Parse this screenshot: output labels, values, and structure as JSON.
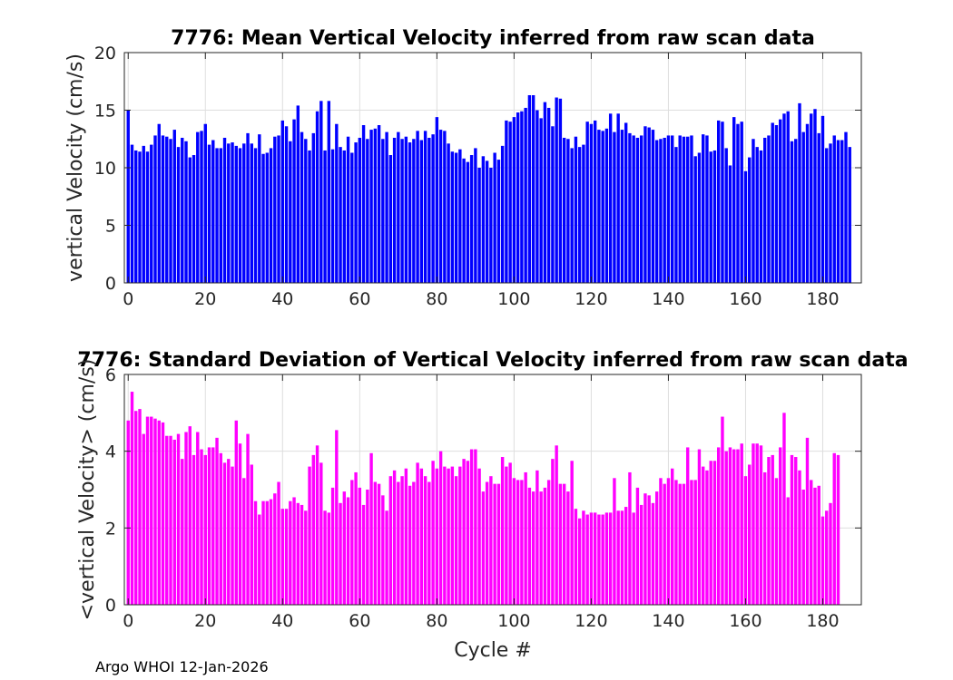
{
  "footer": "Argo WHOI 12-Jan-2026",
  "chart_data": [
    {
      "type": "bar",
      "title": "7776: Mean Vertical Velocity inferred from raw scan data",
      "xlabel": "",
      "ylabel": "vertical Velocity (cm/s)",
      "xlim": [
        -1,
        190
      ],
      "ylim": [
        0,
        20
      ],
      "xticks": [
        0,
        20,
        40,
        60,
        80,
        100,
        120,
        140,
        160,
        180
      ],
      "yticks": [
        0,
        5,
        10,
        15,
        20
      ],
      "grid": true,
      "color": "#0000ff",
      "x_start": 0,
      "values": [
        15.0,
        12.0,
        11.5,
        11.4,
        11.9,
        11.4,
        12.0,
        12.8,
        13.8,
        12.8,
        12.7,
        12.5,
        13.3,
        11.8,
        12.6,
        12.3,
        10.9,
        11.1,
        13.1,
        13.2,
        13.8,
        12.0,
        12.4,
        11.7,
        11.7,
        12.6,
        12.1,
        12.2,
        11.9,
        11.7,
        12.1,
        13.0,
        12.1,
        11.7,
        12.9,
        11.2,
        11.3,
        11.7,
        12.7,
        12.8,
        14.1,
        13.6,
        12.3,
        14.2,
        15.4,
        13.1,
        12.5,
        11.5,
        13.0,
        14.9,
        15.8,
        11.5,
        15.8,
        11.6,
        13.8,
        11.8,
        11.5,
        12.7,
        11.3,
        12.2,
        12.6,
        13.7,
        12.5,
        13.3,
        13.4,
        13.7,
        12.5,
        13.1,
        11.1,
        12.6,
        13.1,
        12.5,
        12.7,
        12.2,
        12.5,
        13.2,
        12.4,
        13.2,
        12.6,
        12.9,
        14.4,
        13.3,
        13.2,
        12.1,
        11.4,
        11.3,
        11.6,
        10.8,
        10.5,
        11.1,
        11.7,
        10.0,
        11.0,
        10.6,
        10.0,
        11.3,
        10.7,
        11.9,
        14.1,
        14.0,
        14.4,
        14.8,
        14.9,
        15.2,
        16.3,
        16.3,
        15.0,
        14.3,
        15.7,
        15.2,
        13.6,
        16.1,
        16.0,
        12.6,
        12.5,
        11.7,
        12.7,
        11.8,
        12.0,
        14.0,
        13.8,
        14.1,
        13.3,
        13.2,
        13.4,
        14.7,
        13.1,
        14.7,
        13.3,
        13.9,
        13.0,
        12.8,
        12.6,
        12.8,
        13.6,
        13.5,
        13.3,
        12.4,
        12.5,
        12.6,
        12.8,
        12.8,
        11.8,
        12.8,
        12.7,
        12.7,
        12.8,
        11.0,
        11.3,
        12.9,
        12.8,
        11.4,
        11.5,
        14.1,
        14.0,
        11.7,
        10.2,
        14.4,
        13.8,
        14.0,
        9.7,
        10.9,
        12.5,
        11.8,
        11.5,
        12.6,
        12.8,
        13.9,
        13.7,
        14.2,
        14.7,
        14.9,
        12.3,
        12.5,
        15.6,
        13.1,
        13.8,
        14.7,
        15.1,
        13.0,
        14.5,
        11.7,
        12.1,
        12.8,
        12.4,
        12.4,
        13.1,
        11.8
      ]
    },
    {
      "type": "bar",
      "title": "7776: Standard Deviation of Vertical Velocity inferred from raw scan data",
      "xlabel": "Cycle #",
      "ylabel": "<vertical Velocity> (cm/s)",
      "xlim": [
        -1,
        190
      ],
      "ylim": [
        0,
        6
      ],
      "xticks": [
        0,
        20,
        40,
        60,
        80,
        100,
        120,
        140,
        160,
        180
      ],
      "yticks": [
        0,
        2,
        4,
        6
      ],
      "grid": true,
      "color": "#ff00ff",
      "x_start": 0,
      "values": [
        4.8,
        5.55,
        5.05,
        5.1,
        4.45,
        4.9,
        4.9,
        4.85,
        4.8,
        4.75,
        4.4,
        4.4,
        4.3,
        4.45,
        3.8,
        4.5,
        4.65,
        3.9,
        4.5,
        4.05,
        3.9,
        4.1,
        4.1,
        4.35,
        3.95,
        3.7,
        3.8,
        3.6,
        4.8,
        4.2,
        3.3,
        4.45,
        3.65,
        2.7,
        2.35,
        2.7,
        2.7,
        2.75,
        2.9,
        3.2,
        2.5,
        2.5,
        2.7,
        2.8,
        2.65,
        2.6,
        2.45,
        3.6,
        3.9,
        4.15,
        3.7,
        2.45,
        2.4,
        3.05,
        4.55,
        2.65,
        2.95,
        2.8,
        3.25,
        3.45,
        3.05,
        2.6,
        3.0,
        3.95,
        3.2,
        3.15,
        2.85,
        2.45,
        3.35,
        3.5,
        3.2,
        3.35,
        3.55,
        3.1,
        3.2,
        3.7,
        3.55,
        3.35,
        3.2,
        3.75,
        3.55,
        4.0,
        3.6,
        3.55,
        3.6,
        3.35,
        3.6,
        3.8,
        3.75,
        4.05,
        4.05,
        3.55,
        2.95,
        3.2,
        3.35,
        3.15,
        3.15,
        3.85,
        3.6,
        3.7,
        3.3,
        3.25,
        3.25,
        3.45,
        3.05,
        2.95,
        3.5,
        2.95,
        3.05,
        3.25,
        3.8,
        4.15,
        3.15,
        3.15,
        2.95,
        3.75,
        2.5,
        2.25,
        2.45,
        2.35,
        2.4,
        2.4,
        2.35,
        2.35,
        2.4,
        2.4,
        3.3,
        2.45,
        2.45,
        2.55,
        3.45,
        2.4,
        3.05,
        2.6,
        2.9,
        2.85,
        2.65,
        2.95,
        3.3,
        3.15,
        3.3,
        3.55,
        3.25,
        3.15,
        3.15,
        4.1,
        3.25,
        3.25,
        4.05,
        3.6,
        3.5,
        3.75,
        3.75,
        4.1,
        4.9,
        4.0,
        4.1,
        4.05,
        4.05,
        4.2,
        3.35,
        3.65,
        4.2,
        4.2,
        4.15,
        3.45,
        3.85,
        3.9,
        3.3,
        4.1,
        5.0,
        2.8,
        3.9,
        3.85,
        3.5,
        3.0,
        4.35,
        3.25,
        3.05,
        3.1,
        2.3,
        2.45,
        2.65,
        3.95,
        3.9
      ]
    }
  ]
}
